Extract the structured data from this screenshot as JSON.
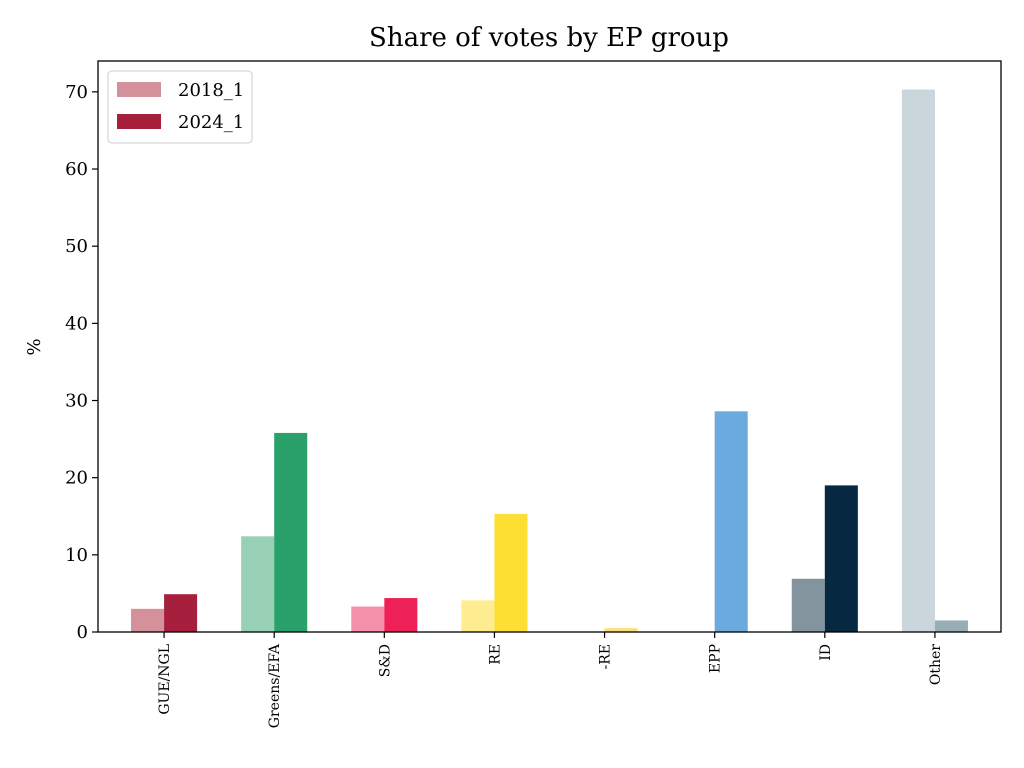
{
  "chart_data": {
    "type": "bar",
    "title": "Share of votes by EP group",
    "xlabel": "",
    "ylabel": "%",
    "ylim": [
      0,
      74
    ],
    "yticks": [
      0,
      10,
      20,
      30,
      40,
      50,
      60,
      70
    ],
    "grid": false,
    "legend_position": "top-left",
    "categories": [
      "GUE/NGL",
      "Greens/EFA",
      "S&D",
      "RE",
      "-RE",
      "EPP",
      "ID",
      "Other"
    ],
    "series": [
      {
        "name": "2018_1",
        "legend_color": "#d4919c",
        "values": [
          3.0,
          12.4,
          3.3,
          4.1,
          0,
          0,
          6.9,
          70.3
        ],
        "colors": [
          "#d4919c",
          "#97d0b4",
          "#f590aa",
          "#fdec90",
          "#fdec90",
          "#a9cbea",
          "#84949f",
          "#cbd6dc"
        ]
      },
      {
        "name": "2024_1",
        "legend_color": "#a6203d",
        "values": [
          4.9,
          25.8,
          4.4,
          15.3,
          0.5,
          28.6,
          19.0,
          1.5
        ],
        "colors": [
          "#a6203d",
          "#2aa16a",
          "#ed2156",
          "#fddf33",
          "#fddf7a",
          "#6aaadf",
          "#062840",
          "#99adb6"
        ]
      }
    ]
  }
}
